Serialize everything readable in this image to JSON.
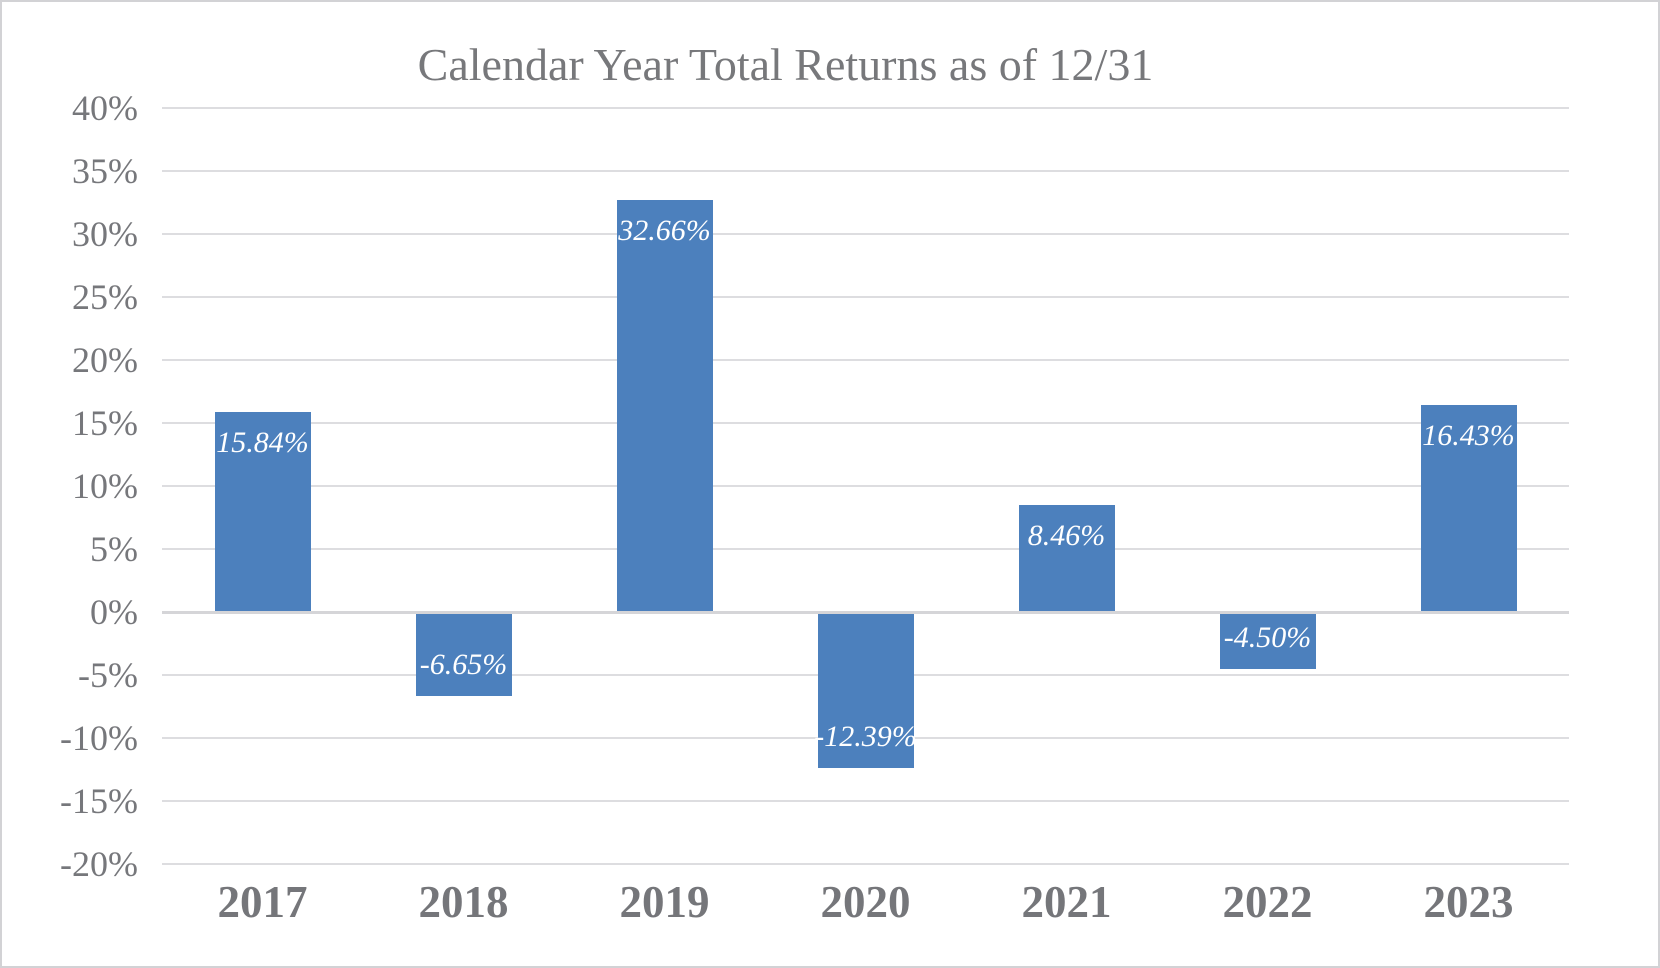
{
  "window": {
    "background": "#ffffff",
    "border_color": "#d2d2d5"
  },
  "chart_data": {
    "type": "bar",
    "title": "Calendar Year Total Returns as of 12/31",
    "categories": [
      "2017",
      "2018",
      "2019",
      "2020",
      "2021",
      "2022",
      "2023"
    ],
    "values": [
      15.84,
      -6.65,
      32.66,
      -12.39,
      8.46,
      -4.5,
      16.43
    ],
    "data_labels": [
      "15.84%",
      "-6.65%",
      "32.66%",
      "-12.39%",
      "8.46%",
      "-4.50%",
      "16.43%"
    ],
    "xlabel": "",
    "ylabel": "",
    "ylim": [
      -20,
      40
    ],
    "ytick_step": 5,
    "yticks": [
      "40%",
      "35%",
      "30%",
      "25%",
      "20%",
      "15%",
      "10%",
      "5%",
      "0%",
      "-5%",
      "-10%",
      "-15%",
      "-20%"
    ],
    "grid": true,
    "legend_position": "none",
    "bar_color": "#4c80bd",
    "data_label_color": "#ffffff",
    "axis_text_color": "#76777b",
    "title_color": "#77787b",
    "gridline_color": "#dddde0",
    "zero_line_color": "#d5d5d8"
  }
}
